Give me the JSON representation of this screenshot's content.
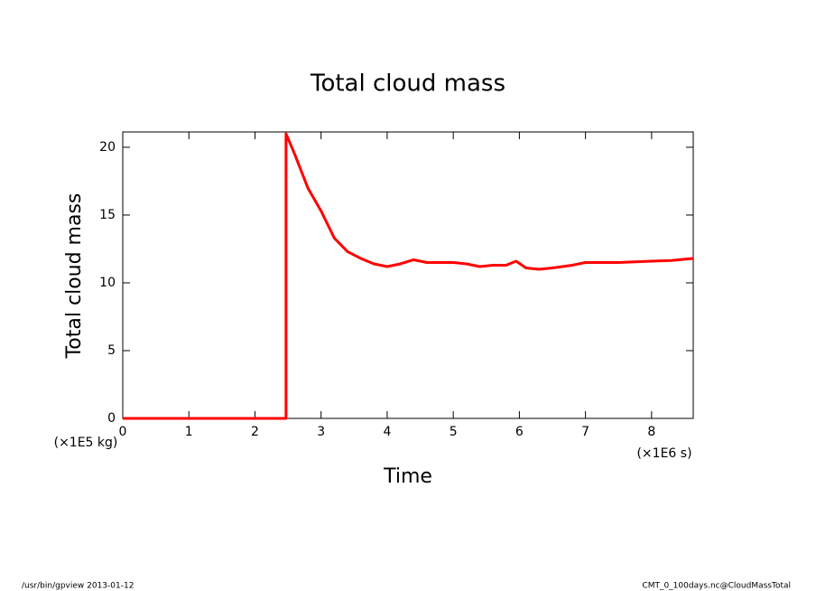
{
  "chart_data": {
    "type": "line",
    "title": "Total cloud mass",
    "x_label": "Time",
    "y_label": "Total cloud mass",
    "x_units": "(×1E6 s)",
    "y_units": "(×1E5 kg)",
    "footer_left": "/usr/bin/gpview  2013-01-12",
    "footer_right": "CMT_0_100days.nc@CloudMassTotal",
    "x": [
      0,
      2.47,
      2.47,
      2.6,
      2.8,
      3.0,
      3.2,
      3.4,
      3.6,
      3.8,
      4.0,
      4.2,
      4.4,
      4.6,
      4.8,
      5.0,
      5.2,
      5.4,
      5.6,
      5.8,
      5.95,
      6.1,
      6.3,
      6.5,
      6.8,
      7.0,
      7.5,
      8.0,
      8.3,
      8.63
    ],
    "series": [
      {
        "name": "Total cloud mass",
        "color": "#ff0000",
        "values": [
          0,
          0,
          21,
          19.5,
          17,
          15.3,
          13.3,
          12.3,
          11.8,
          11.4,
          11.2,
          11.4,
          11.7,
          11.5,
          11.5,
          11.5,
          11.4,
          11.2,
          11.3,
          11.3,
          11.6,
          11.1,
          11.0,
          11.1,
          11.3,
          11.5,
          11.5,
          11.6,
          11.65,
          11.8
        ]
      }
    ],
    "xlim": [
      0,
      8.63
    ],
    "xticks": [
      0,
      1,
      2,
      3,
      4,
      5,
      6,
      7,
      8
    ],
    "ylim": [
      0,
      21.13
    ],
    "yticks": [
      0,
      5,
      10,
      15,
      20
    ],
    "grid": false
  }
}
